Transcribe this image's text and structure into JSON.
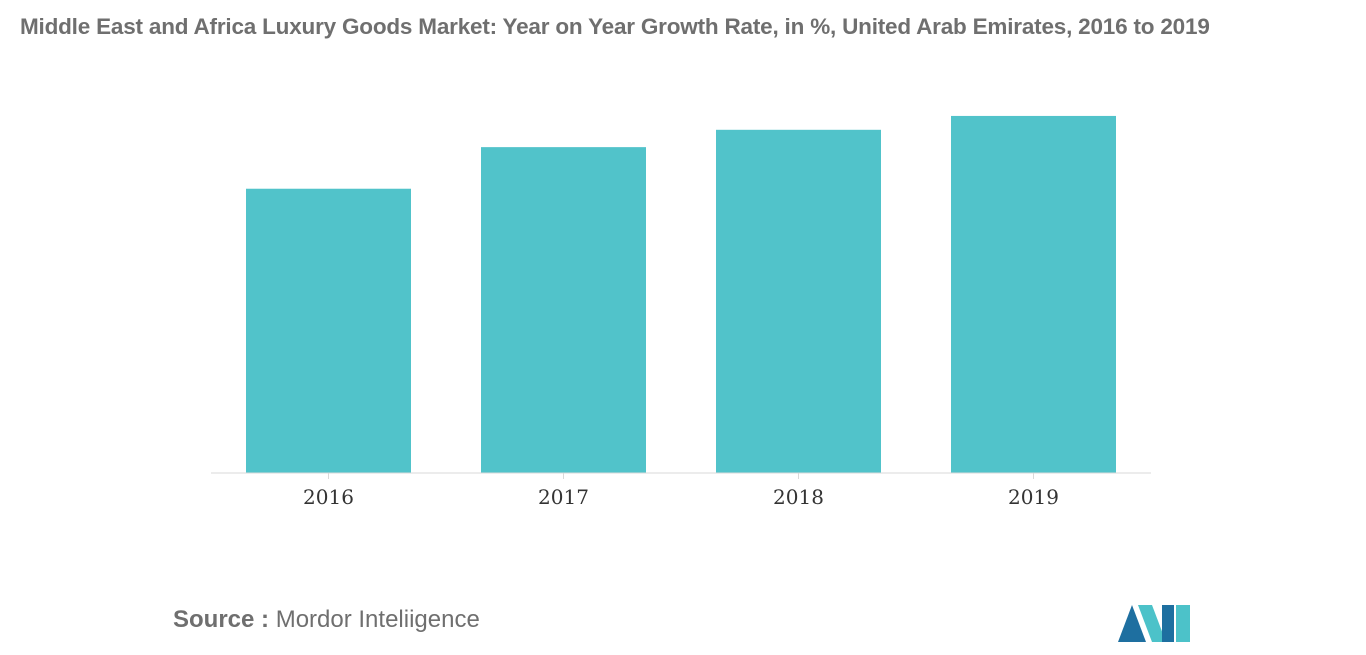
{
  "chart_data": {
    "type": "bar",
    "title": "Middle East and Africa Luxury Goods Market: Year on Year Growth Rate, in %, United Arab Emirates, 2016 to 2019",
    "categories": [
      "2016",
      "2017",
      "2018",
      "2019"
    ],
    "values": [
      8.2,
      9.4,
      9.9,
      10.3
    ],
    "ylim": [
      0,
      12
    ],
    "xlabel": "",
    "ylabel": "",
    "grid": false,
    "legend": "none"
  },
  "source": {
    "label": "Source :",
    "text": "Mordor Inteliigence"
  },
  "colors": {
    "bar": "#51c3ca",
    "title": "#6f6f6f",
    "logo_dark": "#1e6fa0",
    "logo_light": "#4cc2c9"
  },
  "logo_icon": "mordor-intelligence-logo-icon"
}
